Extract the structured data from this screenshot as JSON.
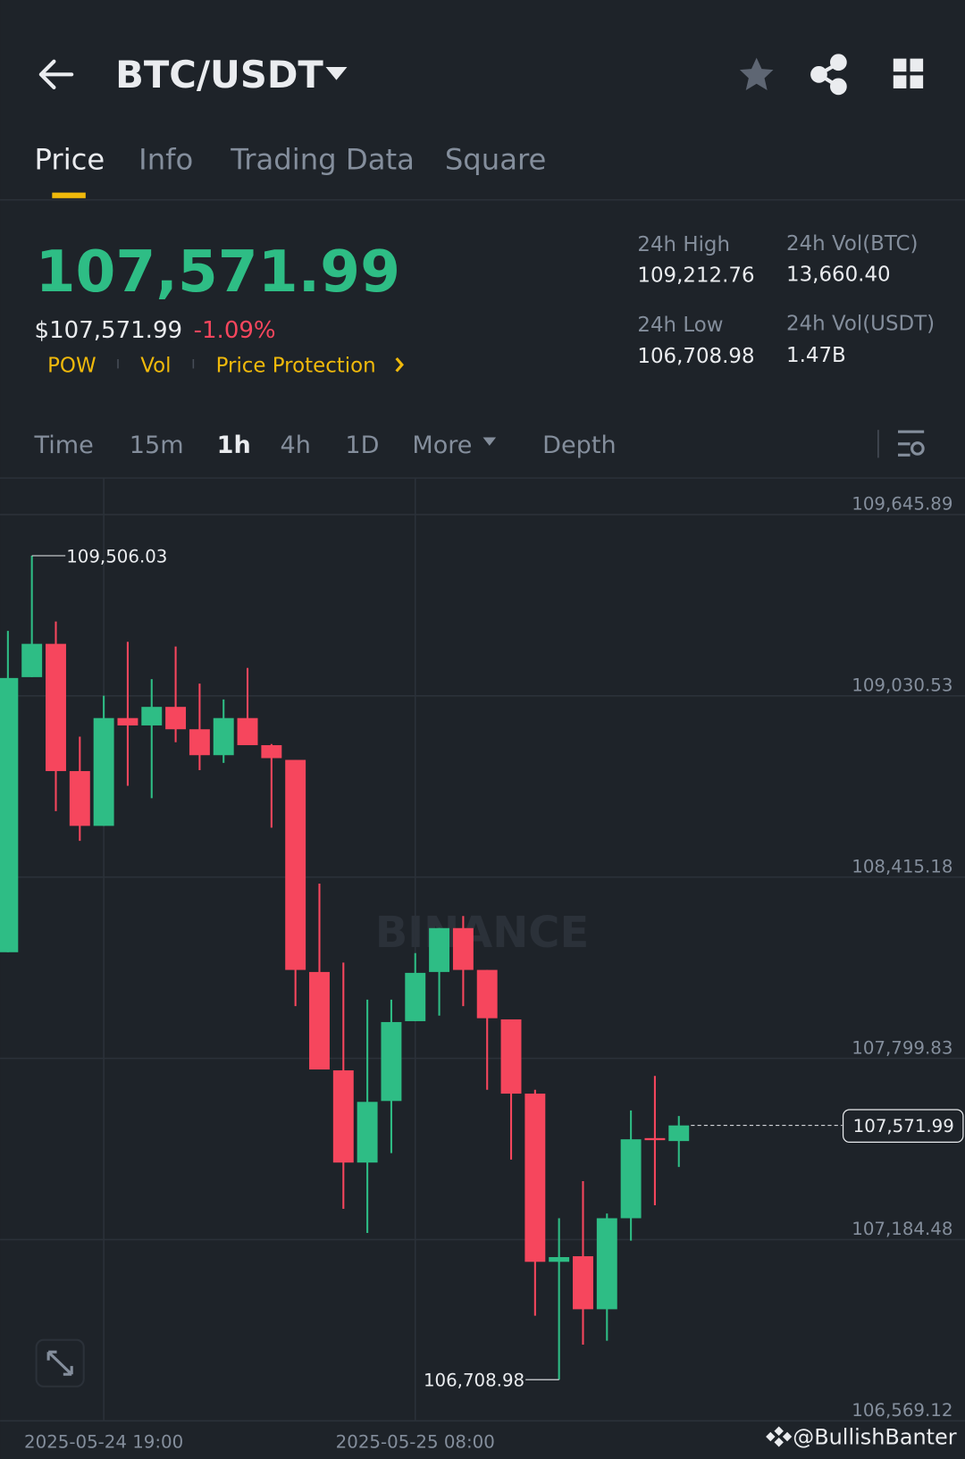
{
  "header": {
    "title": "BTC/USDT"
  },
  "tabs": [
    "Price",
    "Info",
    "Trading Data",
    "Square"
  ],
  "price": {
    "last": "107,571.99",
    "usd": "$107,571.99",
    "change": "-1.09%",
    "tags": [
      "POW",
      "Vol",
      "Price Protection"
    ]
  },
  "stats": [
    {
      "label": "24h High",
      "value": "109,212.76"
    },
    {
      "label": "24h Vol(BTC)",
      "value": "13,660.40"
    },
    {
      "label": "24h Low",
      "value": "106,708.98"
    },
    {
      "label": "24h Vol(USDT)",
      "value": "1.47B"
    }
  ],
  "intervals": [
    "Time",
    "15m",
    "1h",
    "4h",
    "1D",
    "More",
    "Depth"
  ],
  "watermark": "BINANCE",
  "credit": "@BullishBanter",
  "chart_data": {
    "type": "candlestick",
    "categories": [
      null,
      null,
      null,
      null,
      "2025-05-24 19:00",
      null,
      null,
      null,
      null,
      null,
      null,
      null,
      null,
      null,
      null,
      null,
      null,
      "2025-05-25 08:00",
      null,
      null,
      null,
      null,
      null,
      null,
      null,
      null,
      null,
      null,
      null
    ],
    "open": [
      108160,
      109094,
      109207,
      108775,
      108589,
      108955,
      108930,
      108993,
      108917,
      108829,
      108955,
      108863,
      108813,
      108093,
      107759,
      107446,
      107655,
      107926,
      108093,
      108242,
      108100,
      107932,
      107680,
      107109,
      107128,
      106948,
      107257,
      107529,
      107519
    ],
    "high": [
      109251,
      109506.03,
      109283,
      108892,
      109031,
      109214,
      109087,
      109198,
      109072,
      109018,
      109125,
      108867,
      108813,
      108393,
      108125,
      107999,
      107999,
      108157,
      108242,
      108283,
      108100,
      107932,
      107693,
      107257,
      107383,
      107273,
      107623,
      107740,
      107604
    ],
    "low": [
      108160,
      109094,
      108639,
      108538,
      108589,
      108725,
      108683,
      108873,
      108778,
      108803,
      108863,
      108583,
      107977,
      107762,
      107289,
      107207,
      107478,
      107926,
      107945,
      107977,
      107693,
      107456,
      106926,
      106708.98,
      106828,
      106841,
      107181,
      107301,
      107431
    ],
    "close": [
      109091,
      109207,
      108775,
      108589,
      108955,
      108930,
      108993,
      108917,
      108829,
      108955,
      108863,
      108819,
      108100,
      107762,
      107446,
      107652,
      107923,
      108090,
      108242,
      108100,
      107936,
      107680,
      107109,
      107125,
      106948,
      107257,
      107525,
      107522,
      107571.99
    ],
    "up_color": "#2ebd85",
    "down_color": "#f6465d",
    "max_label": "109,506.03",
    "min_label": "106,708.98",
    "last_label": "107,571.99",
    "ylim": [
      106569.12,
      109645.89
    ],
    "yticks": [
      {
        "value": 106569.12,
        "label": "106,569.12"
      },
      {
        "value": 107184.48,
        "label": "107,184.48"
      },
      {
        "value": 107799.83,
        "label": "107,799.83"
      },
      {
        "value": 108415.18,
        "label": "108,415.18"
      },
      {
        "value": 109030.53,
        "label": "109,030.53"
      },
      {
        "value": 109645.89,
        "label": "109,645.89"
      }
    ],
    "grid": true
  }
}
